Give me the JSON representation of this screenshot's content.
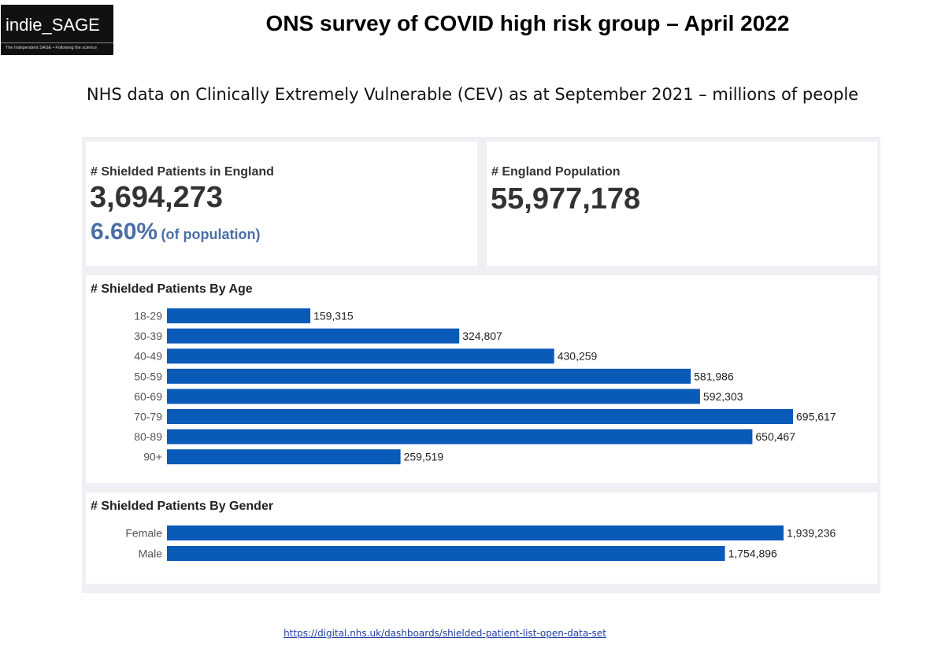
{
  "logo": {
    "text": "indie_SAGE",
    "tagline": "The Independent SAGE • Following the science"
  },
  "title": "ONS survey of COVID high risk group – April 2022",
  "subtitle": "NHS data on Clinically Extremely Vulnerable (CEV) as at September 2021 – millions of people",
  "kpi_shielded": {
    "label": "# Shielded Patients in England",
    "value": "3,694,273",
    "pct": "6.60%",
    "pct_note": "(of population)"
  },
  "kpi_population": {
    "label": "# England Population",
    "value": "55,977,178"
  },
  "colors": {
    "bar": "#0a5ab8",
    "pct": "#4a6fa5"
  },
  "chart_data": [
    {
      "type": "bar",
      "orientation": "horizontal",
      "title": "# Shielded Patients By Age",
      "categories": [
        "18-29",
        "30-39",
        "40-49",
        "50-59",
        "60-69",
        "70-79",
        "80-89",
        "90+"
      ],
      "values": [
        159315,
        324807,
        430259,
        581986,
        592303,
        695617,
        650467,
        259519
      ],
      "labels": [
        "159,315",
        "324,807",
        "430,259",
        "581,986",
        "592,303",
        "695,617",
        "650,467",
        "259,519"
      ],
      "xlim": [
        0,
        695617
      ]
    },
    {
      "type": "bar",
      "orientation": "horizontal",
      "title": "# Shielded Patients By Gender",
      "categories": [
        "Female",
        "Male"
      ],
      "values": [
        1939236,
        1754896
      ],
      "labels": [
        "1,939,236",
        "1,754,896"
      ],
      "xlim": [
        0,
        1939236
      ]
    }
  ],
  "source_url": "https://digital.nhs.uk/dashboards/shielded-patient-list-open-data-set"
}
